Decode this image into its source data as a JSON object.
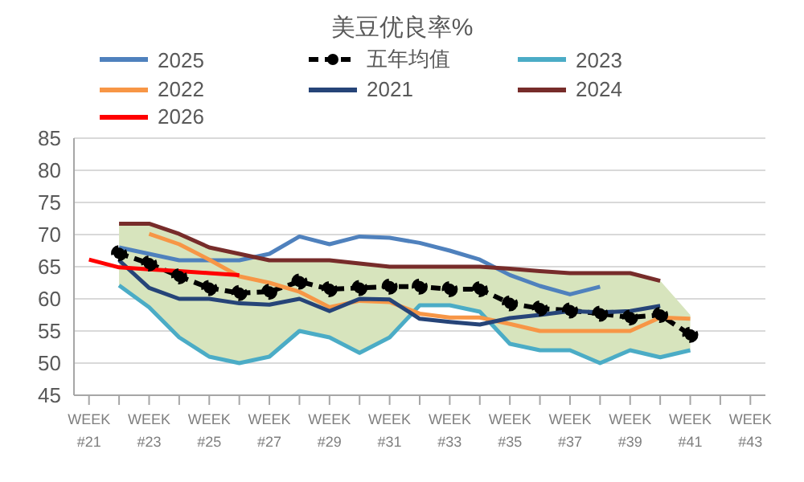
{
  "chart_data": {
    "type": "line",
    "title": "美豆优良率%",
    "categories": [
      "WEEK #21",
      null,
      "WEEK #23",
      null,
      "WEEK #25",
      null,
      "WEEK #27",
      null,
      "WEEK #29",
      null,
      "WEEK #31",
      null,
      "WEEK #33",
      null,
      "WEEK #35",
      null,
      "WEEK #37",
      null,
      "WEEK #39",
      null,
      "WEEK #41",
      null,
      "WEEK #43"
    ],
    "series": [
      {
        "name": "2025",
        "color": "#4f81bd",
        "values": [
          null,
          68,
          67,
          66,
          66,
          66,
          67,
          69.7,
          68.5,
          69.7,
          69.5,
          68.7,
          67.5,
          66.1,
          63.7,
          62,
          60.7,
          61.9,
          null,
          null,
          null,
          null,
          null
        ]
      },
      {
        "name": "五年均值",
        "color": "#000000",
        "marker": "circle",
        "line_style": "dashed",
        "values": [
          null,
          67.1,
          65.5,
          63.5,
          61.7,
          60.9,
          61.1,
          62.7,
          61.5,
          61.7,
          61.9,
          61.9,
          61.5,
          61.5,
          59.3,
          58.5,
          58.2,
          57.7,
          57.1,
          57.5,
          54.4,
          null,
          null
        ],
        "lower": [
          null,
          62.1,
          58.7,
          54,
          51,
          50,
          51,
          55,
          54,
          51.6,
          54,
          59,
          59,
          58,
          53,
          52,
          52,
          50,
          52,
          50.9,
          52,
          null,
          null
        ],
        "upper": [
          null,
          71.7,
          71.7,
          70.1,
          68,
          67,
          66,
          66,
          66,
          65.5,
          65,
          65,
          65,
          65,
          64.7,
          64.3,
          64,
          64,
          64,
          62.8,
          57.5,
          null,
          null
        ]
      },
      {
        "name": "2023",
        "color": "#4bacc6",
        "values": [
          null,
          62.1,
          58.7,
          54,
          51,
          50,
          51,
          55,
          54,
          51.6,
          54,
          59,
          59,
          58,
          53,
          52,
          52,
          50,
          52,
          50.9,
          52,
          null,
          null
        ]
      },
      {
        "name": "2022",
        "color": "#f79646",
        "values": [
          null,
          null,
          70.1,
          68.5,
          66.1,
          63.5,
          62.5,
          61.1,
          58.7,
          59.7,
          59.5,
          57.7,
          57.1,
          57.1,
          56.1,
          55,
          55,
          55,
          55,
          57.1,
          56.9,
          null,
          null
        ]
      },
      {
        "name": "2021",
        "color": "#264478",
        "values": [
          null,
          66,
          61.7,
          60,
          60,
          59.3,
          59.1,
          60,
          58.1,
          60,
          59.9,
          56.9,
          56.4,
          56,
          57,
          57.5,
          58.1,
          57.9,
          58.1,
          58.9,
          null,
          null,
          null
        ]
      },
      {
        "name": "2024",
        "color": "#772c2a",
        "values": [
          null,
          71.7,
          71.7,
          70.1,
          68,
          67,
          66,
          66,
          66,
          65.5,
          65,
          65,
          65,
          65,
          64.7,
          64.3,
          64,
          64,
          64,
          62.8,
          null,
          null,
          null
        ]
      },
      {
        "name": "2026",
        "color": "#ff0000",
        "values": [
          66.1,
          64.9,
          64.6,
          64.3,
          64,
          63.7,
          null,
          null,
          null,
          null,
          null,
          null,
          null,
          null,
          null,
          null,
          null,
          null,
          null,
          null,
          null,
          null,
          null
        ]
      }
    ],
    "ylim": [
      45,
      85
    ],
    "yticks": [
      45,
      50,
      55,
      60,
      65,
      70,
      75,
      80,
      85
    ],
    "grid": "y",
    "legend": "top",
    "marker": "none",
    "line_style": "solid"
  }
}
